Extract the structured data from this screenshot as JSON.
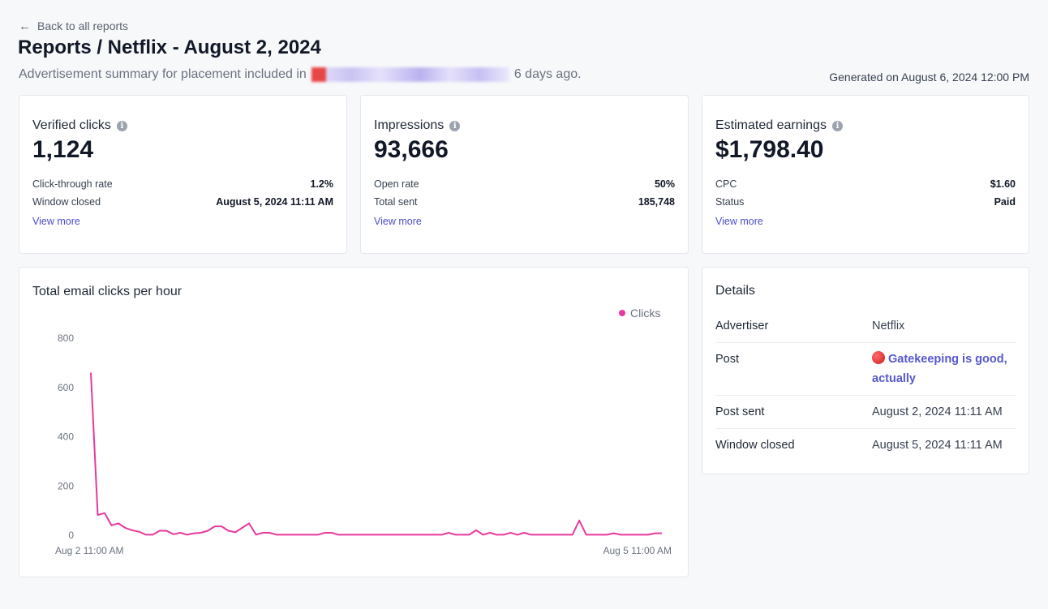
{
  "nav": {
    "back_label": "Back to all reports",
    "back_arrow": "←"
  },
  "header": {
    "title": "Reports / Netflix - August 2, 2024",
    "subtitle_prefix": "Advertisement summary for placement included in",
    "subtitle_suffix": "6 days ago.",
    "generated": "Generated on August 6, 2024 12:00 PM"
  },
  "stats": [
    {
      "label": "Verified clicks",
      "value": "1,124",
      "rows": [
        {
          "k": "Click-through rate",
          "v": "1.2%"
        },
        {
          "k": "Window closed",
          "v": "August 5, 2024 11:11 AM"
        }
      ],
      "link": "View more"
    },
    {
      "label": "Impressions",
      "value": "93,666",
      "rows": [
        {
          "k": "Open rate",
          "v": "50%"
        },
        {
          "k": "Total sent",
          "v": "185,748"
        }
      ],
      "link": "View more"
    },
    {
      "label": "Estimated earnings",
      "value": "$1,798.40",
      "rows": [
        {
          "k": "CPC",
          "v": "$1.60"
        },
        {
          "k": "Status",
          "v": "Paid"
        }
      ],
      "link": "View more"
    }
  ],
  "chart_data": {
    "type": "line",
    "title": "Total email clicks per hour",
    "ylim": [
      0,
      800
    ],
    "yticks": [
      "800",
      "600",
      "400",
      "200",
      "0"
    ],
    "xtick_labels": [
      "Aug 2 11:00 AM",
      "Aug 5 11:00 AM"
    ],
    "legend": "Clicks",
    "legend_position": "top-right",
    "color": "#e8399c",
    "series": [
      {
        "name": "Clicks",
        "values": [
          660,
          82,
          90,
          40,
          48,
          30,
          20,
          14,
          2,
          2,
          18,
          18,
          4,
          10,
          2,
          8,
          10,
          18,
          36,
          36,
          18,
          12,
          30,
          48,
          2,
          10,
          10,
          2,
          2,
          2,
          2,
          2,
          2,
          2,
          10,
          10,
          2,
          2,
          2,
          2,
          2,
          2,
          2,
          2,
          2,
          2,
          2,
          2,
          2,
          2,
          2,
          2,
          10,
          2,
          2,
          2,
          20,
          2,
          10,
          2,
          2,
          10,
          2,
          10,
          2,
          2,
          2,
          2,
          2,
          2,
          2,
          60,
          2,
          2,
          2,
          2,
          8,
          2,
          2,
          2,
          2,
          2,
          8,
          8
        ]
      }
    ]
  },
  "details": {
    "title": "Details",
    "rows": [
      {
        "k": "Advertiser",
        "v": "Netflix"
      },
      {
        "k": "Post",
        "v": "Gatekeeping is good, actually"
      },
      {
        "k": "Post sent",
        "v": "August 2, 2024 11:11 AM"
      },
      {
        "k": "Window closed",
        "v": "August 5, 2024 11:11 AM"
      }
    ]
  }
}
